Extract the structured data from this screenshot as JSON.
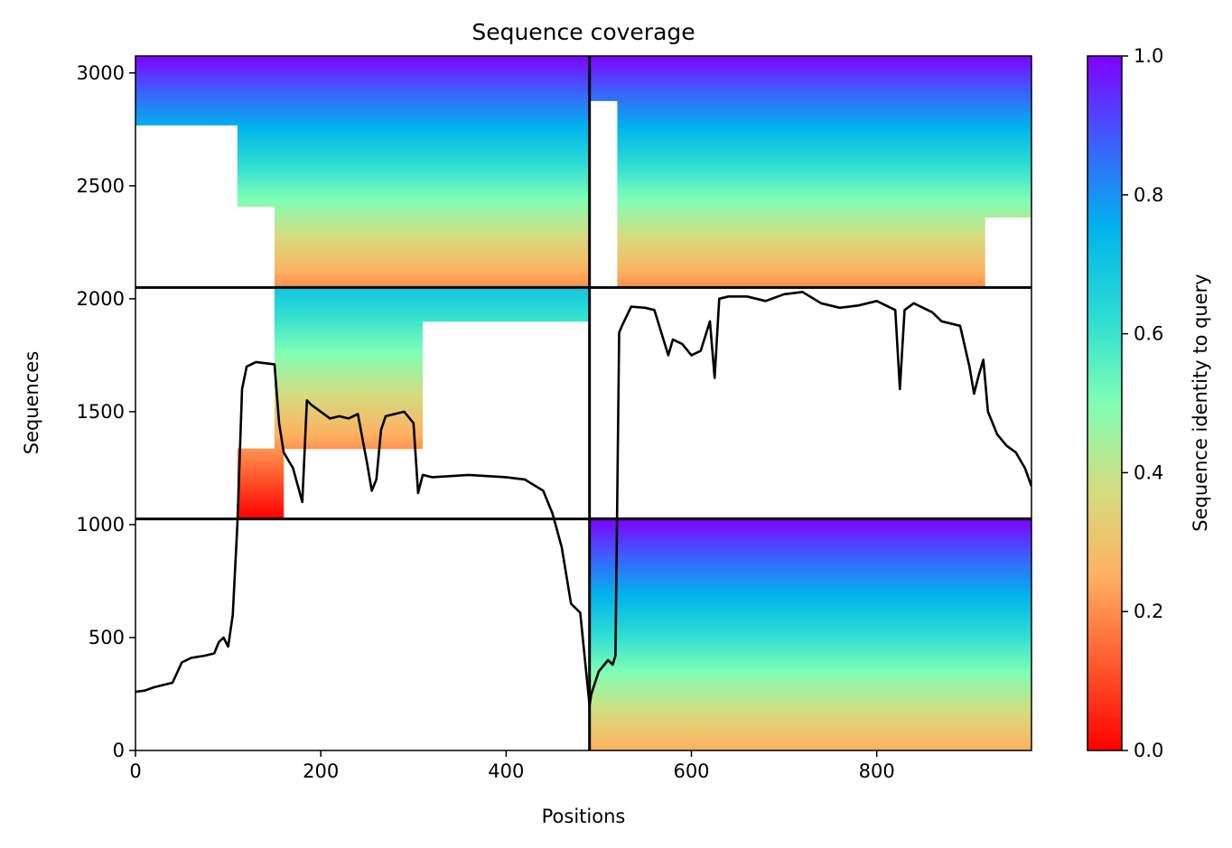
{
  "chart_data": {
    "type": "heatmap",
    "title": "Sequence coverage",
    "xlabel": "Positions",
    "ylabel": "Sequences",
    "colorbar_label": "Sequence identity to query",
    "colormap": "rainbow_r",
    "xlim": [
      0,
      967
    ],
    "ylim": [
      0,
      3075
    ],
    "x_ticks": [
      0,
      200,
      400,
      600,
      800
    ],
    "y_ticks": [
      0,
      500,
      1000,
      1500,
      2000,
      2500,
      3000
    ],
    "colorbar_ticks": [
      0.0,
      0.2,
      0.4,
      0.6,
      0.8,
      1.0
    ],
    "colorbar_tick_labels": [
      "0.0",
      "0.2",
      "0.4",
      "0.6",
      "0.8",
      "1.0"
    ],
    "chain_boundaries": {
      "x": [
        490
      ],
      "y": [
        1025,
        2050
      ]
    },
    "blocks": [
      {
        "block": "chain 1 paired (top-left)",
        "x_range": [
          0,
          490
        ],
        "y_range": [
          2050,
          3075
        ],
        "identity_range": [
          0.2,
          1.0
        ]
      },
      {
        "block": "chain 2 paired (top-right)",
        "x_range": [
          490,
          967
        ],
        "y_range": [
          2050,
          3075
        ],
        "identity_range": [
          0.2,
          1.0
        ]
      },
      {
        "block": "chain 1 unpaired (middle-left)",
        "x_range": [
          0,
          490
        ],
        "y_range": [
          1025,
          2050
        ],
        "identity_range": [
          0.0,
          0.7
        ]
      },
      {
        "block": "chain 2 unpaired (bottom-right)",
        "x_range": [
          490,
          967
        ],
        "y_range": [
          0,
          1025
        ],
        "identity_range": [
          0.25,
          1.0
        ]
      }
    ],
    "coverage_line": {
      "color": "#000000",
      "x": [
        0,
        10,
        20,
        40,
        50,
        60,
        75,
        85,
        90,
        95,
        100,
        105,
        110,
        115,
        120,
        130,
        150,
        155,
        160,
        170,
        180,
        185,
        190,
        200,
        210,
        220,
        230,
        240,
        250,
        255,
        260,
        265,
        270,
        280,
        290,
        300,
        305,
        310,
        320,
        360,
        400,
        420,
        440,
        450,
        460,
        470,
        480,
        490,
        492,
        500,
        510,
        515,
        518,
        522,
        525,
        535,
        550,
        560,
        575,
        580,
        590,
        600,
        610,
        620,
        625,
        630,
        640,
        660,
        680,
        700,
        720,
        740,
        760,
        780,
        800,
        820,
        825,
        830,
        840,
        860,
        870,
        880,
        890,
        900,
        905,
        910,
        915,
        920,
        930,
        940,
        950,
        960,
        967
      ],
      "y": [
        260,
        265,
        280,
        300,
        390,
        410,
        420,
        430,
        480,
        500,
        460,
        600,
        1000,
        1600,
        1700,
        1720,
        1710,
        1450,
        1320,
        1250,
        1100,
        1550,
        1530,
        1500,
        1470,
        1480,
        1470,
        1490,
        1270,
        1150,
        1200,
        1420,
        1480,
        1490,
        1500,
        1450,
        1140,
        1220,
        1210,
        1220,
        1210,
        1200,
        1150,
        1050,
        900,
        650,
        610,
        200,
        250,
        350,
        400,
        380,
        420,
        1850,
        1880,
        1965,
        1960,
        1950,
        1750,
        1820,
        1800,
        1750,
        1770,
        1900,
        1650,
        2000,
        2010,
        2010,
        1990,
        2020,
        2030,
        1980,
        1960,
        1970,
        1990,
        1950,
        1600,
        1950,
        1980,
        1940,
        1900,
        1890,
        1880,
        1700,
        1580,
        1660,
        1730,
        1500,
        1400,
        1350,
        1320,
        1250,
        1170
      ]
    }
  }
}
